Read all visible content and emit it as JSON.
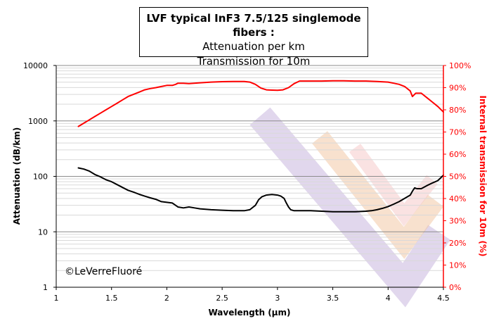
{
  "chart_data": {
    "type": "line",
    "title": "LVF typical InF3 7.5/125 singlemode fibers :",
    "subtitle_lines": [
      "Attenuation  per km",
      "Transmission for 10m"
    ],
    "xlabel": "Wavelength (µm)",
    "ylabel": "Attenuation (dB/km)",
    "ylabel_right": "Internal transmission for 10m (%)",
    "xlim": [
      1,
      4.5
    ],
    "ylim": [
      1,
      10000
    ],
    "ylim_right": [
      0,
      100
    ],
    "y_scale": "log",
    "grid": true,
    "x_ticks": [
      "1",
      "1.5",
      "2",
      "2.5",
      "3",
      "3.5",
      "4",
      "4.5"
    ],
    "y_ticks": [
      "1",
      "10",
      "100",
      "1000",
      "10000"
    ],
    "y_right_ticks": [
      "0%",
      "10%",
      "20%",
      "30%",
      "40%",
      "50%",
      "60%",
      "70%",
      "80%",
      "90%",
      "100%"
    ],
    "annotation": "©LeVerreFluoré",
    "series": [
      {
        "axis": "left",
        "color": "#000000",
        "x": [
          1.2,
          1.25,
          1.3,
          1.35,
          1.4,
          1.45,
          1.5,
          1.55,
          1.6,
          1.65,
          1.7,
          1.75,
          1.8,
          1.85,
          1.9,
          1.95,
          2.0,
          2.05,
          2.08,
          2.1,
          2.15,
          2.2,
          2.25,
          2.3,
          2.4,
          2.5,
          2.6,
          2.7,
          2.75,
          2.8,
          2.83,
          2.86,
          2.9,
          2.95,
          3.0,
          3.03,
          3.06,
          3.08,
          3.1,
          3.12,
          3.15,
          3.2,
          3.3,
          3.4,
          3.5,
          3.6,
          3.7,
          3.8,
          3.85,
          3.9,
          3.95,
          4.0,
          4.05,
          4.1,
          4.15,
          4.2,
          4.22,
          4.24,
          4.26,
          4.3,
          4.35,
          4.4,
          4.45,
          4.48,
          4.5
        ],
        "y": [
          142,
          135,
          124,
          108,
          98,
          87,
          80,
          71,
          63,
          56,
          52,
          47.5,
          44,
          41,
          38.5,
          35,
          34,
          33,
          30,
          28,
          27,
          28,
          27,
          26,
          25,
          24.5,
          24,
          24,
          25,
          30,
          38,
          43,
          46,
          47,
          46,
          44,
          40,
          33,
          28,
          25,
          24,
          24,
          24,
          23.5,
          23,
          23,
          23,
          23.5,
          24,
          25,
          26.5,
          28.5,
          31.5,
          35,
          40,
          46,
          54,
          62,
          60,
          60,
          68,
          76,
          84,
          96,
          105
        ]
      },
      {
        "axis": "right",
        "color": "#ff0000",
        "x": [
          1.2,
          1.25,
          1.3,
          1.35,
          1.4,
          1.45,
          1.5,
          1.55,
          1.6,
          1.65,
          1.7,
          1.75,
          1.8,
          1.85,
          1.9,
          1.95,
          2.0,
          2.05,
          2.08,
          2.1,
          2.15,
          2.2,
          2.3,
          2.4,
          2.5,
          2.6,
          2.7,
          2.75,
          2.8,
          2.85,
          2.9,
          2.95,
          3.0,
          3.05,
          3.1,
          3.15,
          3.2,
          3.3,
          3.4,
          3.5,
          3.6,
          3.7,
          3.8,
          3.9,
          4.0,
          4.05,
          4.1,
          4.15,
          4.2,
          4.22,
          4.25,
          4.3,
          4.35,
          4.4,
          4.45,
          4.5
        ],
        "y": [
          72.5,
          74,
          75.5,
          77,
          78.5,
          80,
          81.5,
          83,
          84.5,
          86,
          87,
          88,
          89,
          89.6,
          90,
          90.5,
          91,
          91,
          91.5,
          92,
          92,
          91.8,
          92.2,
          92.5,
          92.7,
          92.8,
          92.8,
          92.5,
          91.5,
          89.8,
          89,
          88.9,
          88.8,
          89,
          90,
          91.8,
          93,
          93,
          93,
          93.1,
          93.1,
          93,
          93,
          92.8,
          92.5,
          92,
          91.5,
          90.5,
          88.5,
          86,
          87.5,
          87.5,
          85.5,
          83.5,
          81.5,
          79
        ]
      }
    ]
  }
}
